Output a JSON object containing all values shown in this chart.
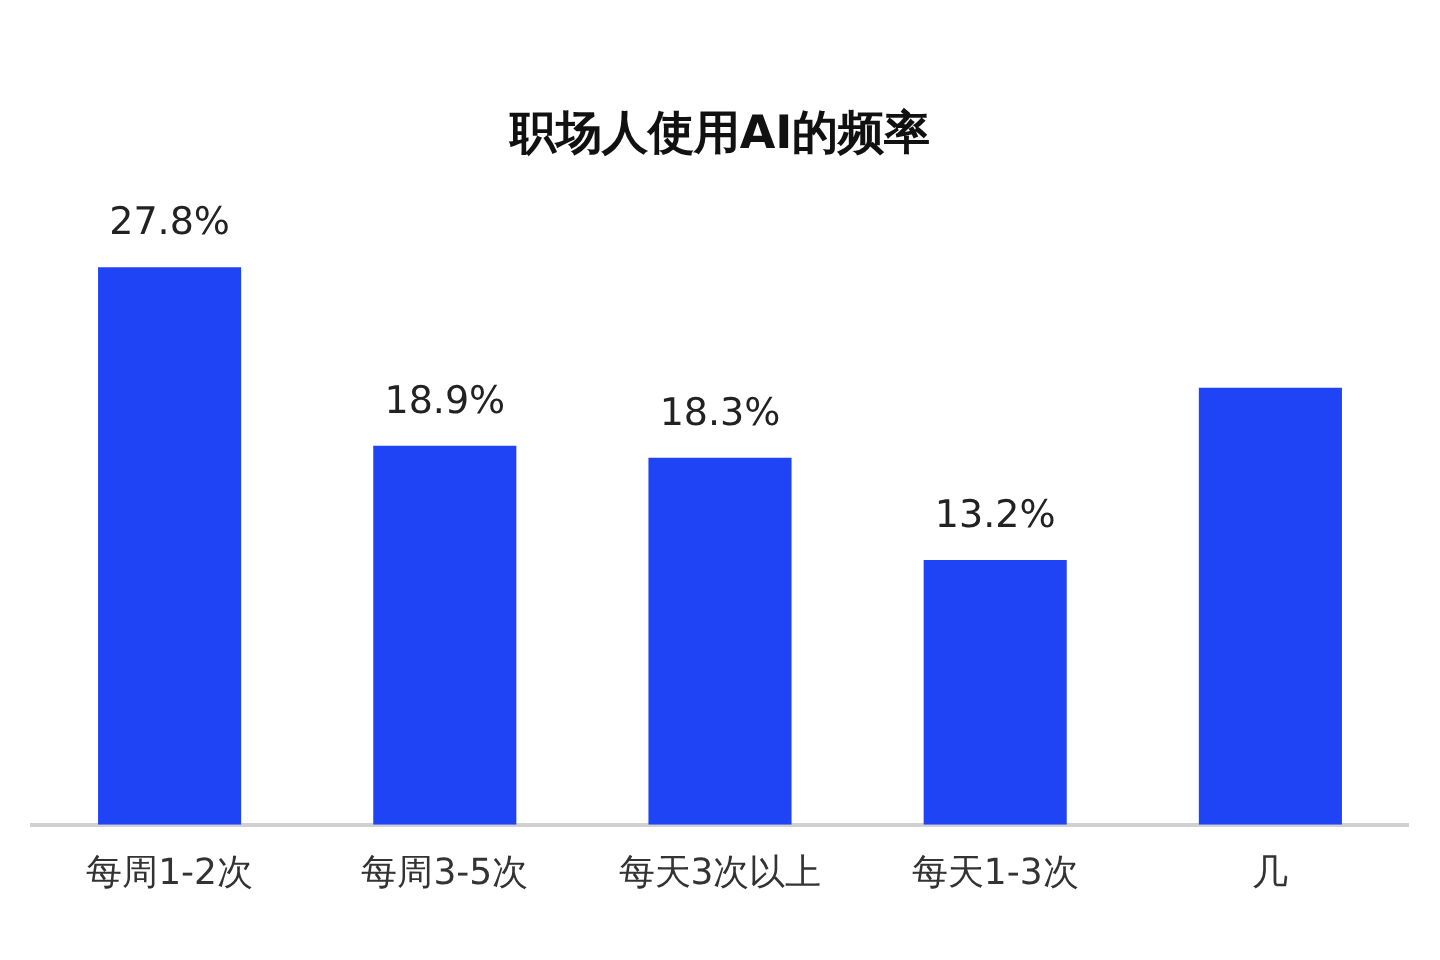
{
  "chart_data": {
    "type": "bar",
    "title": "职场人使用AI的频率",
    "categories": [
      "每周1-2次",
      "每周3-5次",
      "每天3次以上",
      "每天1-3次",
      "几"
    ],
    "values": [
      27.8,
      18.9,
      18.3,
      13.2,
      21.8
    ],
    "value_labels": [
      "27.8%",
      "18.9%",
      "18.3%",
      "13.2%",
      null
    ],
    "color": "#1f44f5",
    "grid": false,
    "legend": false
  }
}
